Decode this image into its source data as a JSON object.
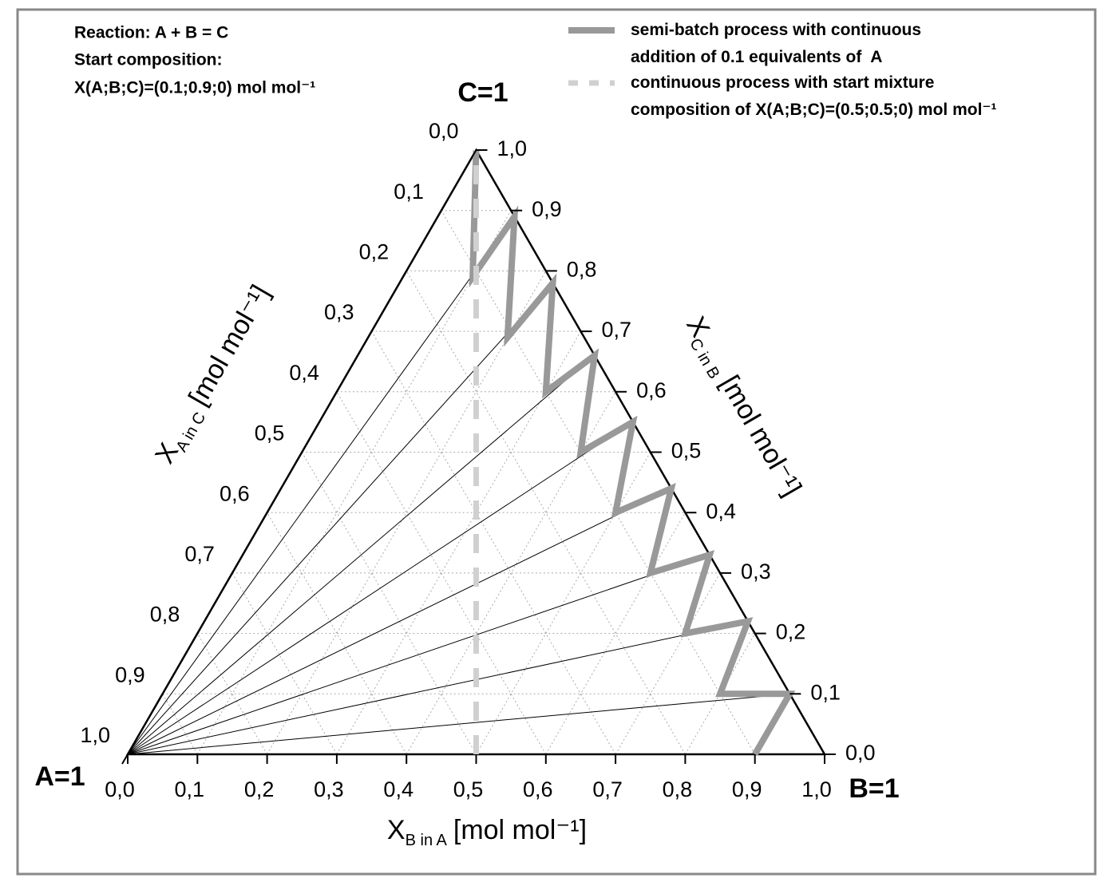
{
  "chart_data": {
    "type": "ternary",
    "annotations": [
      "Reaction: A + B = C",
      "Start composition:",
      "X(A;B;C)=(0.1;0.9;0) mol mol⁻¹"
    ],
    "vertex_labels": {
      "a": "A=1",
      "b": "B=1",
      "c": "C=1"
    },
    "axes": {
      "b": {
        "label": {
          "symbol": "X",
          "subscript": "B in A",
          "unit": "[mol mol⁻¹]"
        },
        "ticks": [
          {
            "value": 0,
            "label": "0,0"
          },
          {
            "value": 0.1,
            "label": "0,1"
          },
          {
            "value": 0.2,
            "label": "0,2"
          },
          {
            "value": 0.3,
            "label": "0,3"
          },
          {
            "value": 0.4,
            "label": "0,4"
          },
          {
            "value": 0.5,
            "label": "0,5"
          },
          {
            "value": 0.6,
            "label": "0,6"
          },
          {
            "value": 0.7,
            "label": "0,7"
          },
          {
            "value": 0.8,
            "label": "0,8"
          },
          {
            "value": 0.9,
            "label": "0,9"
          },
          {
            "value": 1,
            "label": "1,0"
          }
        ]
      },
      "c": {
        "label": {
          "symbol": "X",
          "subscript": "C in B",
          "unit": "[mol mol⁻¹]"
        },
        "ticks": [
          {
            "value": 0,
            "label": "0,0"
          },
          {
            "value": 0.1,
            "label": "0,1"
          },
          {
            "value": 0.2,
            "label": "0,2"
          },
          {
            "value": 0.3,
            "label": "0,3"
          },
          {
            "value": 0.4,
            "label": "0,4"
          },
          {
            "value": 0.5,
            "label": "0,5"
          },
          {
            "value": 0.6,
            "label": "0,6"
          },
          {
            "value": 0.7,
            "label": "0,7"
          },
          {
            "value": 0.8,
            "label": "0,8"
          },
          {
            "value": 0.9,
            "label": "0,9"
          },
          {
            "value": 1,
            "label": "1,0"
          }
        ]
      },
      "a": {
        "label": {
          "symbol": "X",
          "subscript": "A in C",
          "unit": "[mol mol⁻¹]"
        },
        "ticks": [
          {
            "value": 0,
            "label": "0,0"
          },
          {
            "value": 0.1,
            "label": "0,1"
          },
          {
            "value": 0.2,
            "label": "0,2"
          },
          {
            "value": 0.3,
            "label": "0,3"
          },
          {
            "value": 0.4,
            "label": "0,4"
          },
          {
            "value": 0.5,
            "label": "0,5"
          },
          {
            "value": 0.6,
            "label": "0,6"
          },
          {
            "value": 0.7,
            "label": "0,7"
          },
          {
            "value": 0.8,
            "label": "0,8"
          },
          {
            "value": 0.9,
            "label": "0,9"
          },
          {
            "value": 1,
            "label": "1,0"
          }
        ]
      }
    },
    "grid": true,
    "legend": "top-right",
    "series": [
      {
        "name": "semi-batch process with continuous\naddition of 0.1 equivalents of  A",
        "color": "#999999",
        "style": "solid",
        "b": [
          0.9,
          0.9,
          0.8,
          0.78,
          0.7,
          0.67,
          0.6,
          0.56,
          0.5,
          0.45,
          0.4,
          0.34,
          0.3,
          0.22,
          0.2,
          0.11,
          0.1,
          0
        ],
        "c": [
          0,
          0.1,
          0.1,
          0.22,
          0.2,
          0.33,
          0.3,
          0.44,
          0.4,
          0.55,
          0.5,
          0.66,
          0.6,
          0.78,
          0.69,
          0.89,
          0.79,
          1
        ]
      },
      {
        "name": "continuous process with start mixture\ncomposition of X(A;B;C)=(0.5;0.5;0) mol mol⁻¹",
        "color": "#d0d0d0",
        "style": "dashed",
        "b": [
          0.5,
          0
        ],
        "c": [
          0,
          1
        ]
      }
    ]
  }
}
